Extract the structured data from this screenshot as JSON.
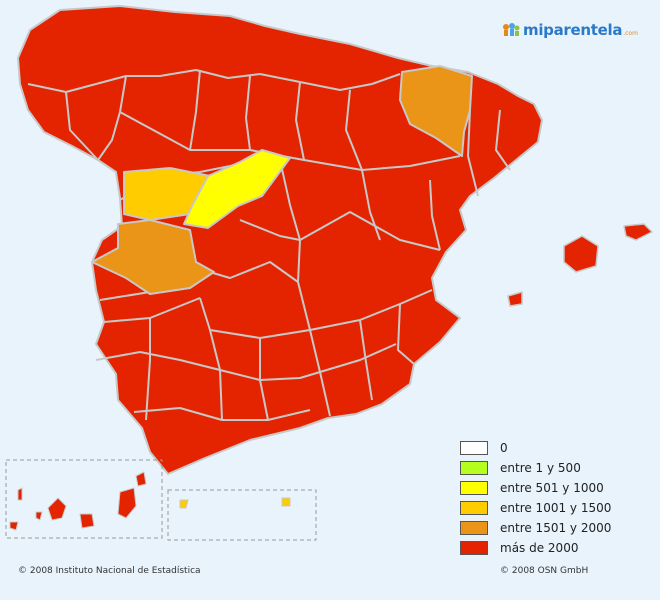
{
  "brand": {
    "name": "miparentela",
    "suffix": ".com",
    "color": "#2b7ac9"
  },
  "legend": {
    "items": [
      {
        "label": "0",
        "color": "#ffffff"
      },
      {
        "label": "entre 1 y 500",
        "color": "#b5ff1e"
      },
      {
        "label": "entre 501 y 1000",
        "color": "#ffff00"
      },
      {
        "label": "entre 1001 y 1500",
        "color": "#ffcc00"
      },
      {
        "label": "entre 1501 y 2000",
        "color": "#ea9418"
      },
      {
        "label": "más de 2000",
        "color": "#e42400"
      }
    ]
  },
  "regions": {
    "default_category": "más de 2000",
    "highlighted": [
      {
        "category": "entre 1501 y 2000"
      },
      {
        "category": "entre 1001 y 1500"
      },
      {
        "category": "entre 501 y 1000"
      },
      {
        "category": "entre 1501 y 2000"
      }
    ]
  },
  "footer": {
    "left": "© 2008 Instituto Nacional de Estadística",
    "right": "© 2008 OSN GmbH"
  },
  "colors": {
    "background": "#e9f3fb",
    "border": "#c8c8c8",
    "inset_border": "#999999"
  }
}
